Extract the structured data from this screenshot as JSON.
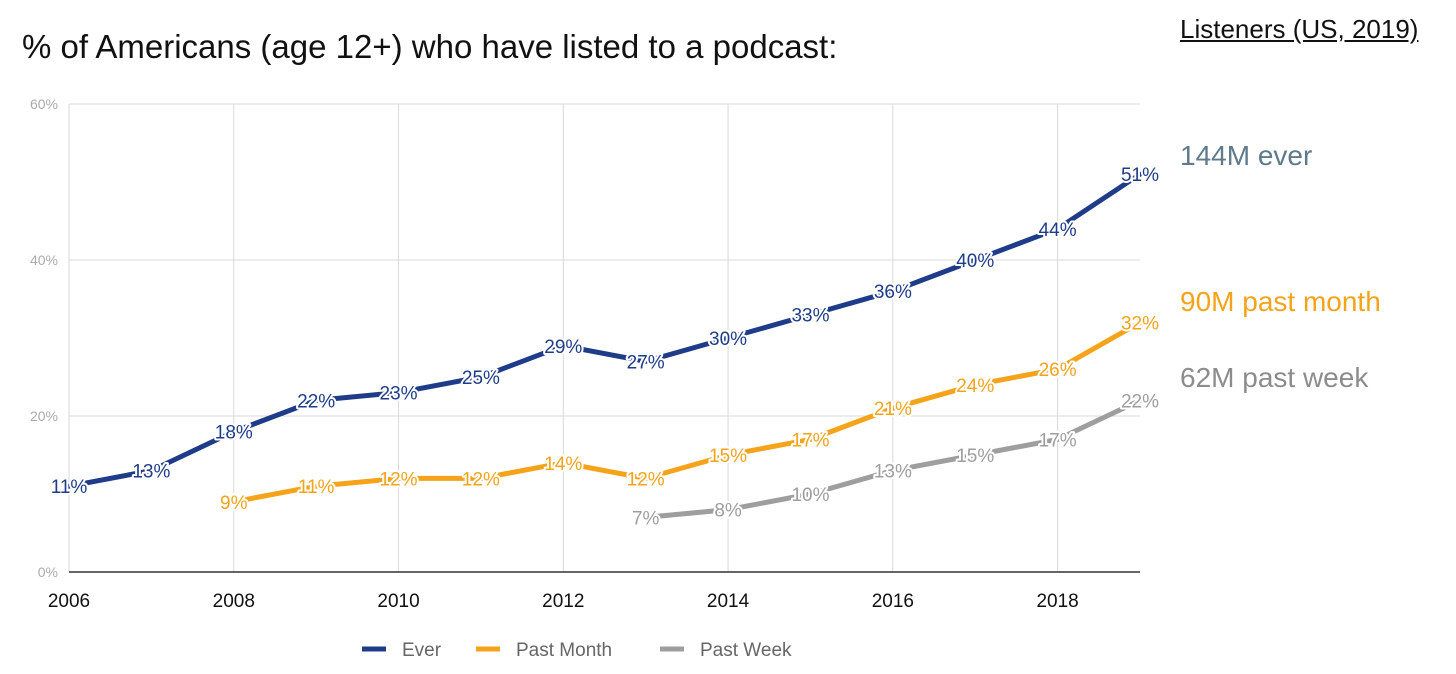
{
  "title": "% of Americans (age 12+) who have listed to a podcast:",
  "side_panel": {
    "heading": "Listeners (US, 2019)",
    "stats": [
      {
        "text": "144M ever",
        "color": "#5f7a8c"
      },
      {
        "text": "90M past month",
        "color": "#f5a31a"
      },
      {
        "text": "62M past week",
        "color": "#8c8c8c"
      }
    ]
  },
  "chart_data": {
    "type": "line",
    "x_ticks": [
      2006,
      2008,
      2010,
      2012,
      2014,
      2016,
      2018
    ],
    "y_ticks": [
      "0%",
      "20%",
      "40%",
      "60%"
    ],
    "ylim": [
      0,
      60
    ],
    "xlim": [
      2006,
      2019
    ],
    "grid": true,
    "legend_position": "bottom",
    "series": [
      {
        "name": "Ever",
        "color": "#1f3c88",
        "label_color": "#1f3c88",
        "x": [
          2006,
          2007,
          2008,
          2009,
          2010,
          2011,
          2012,
          2013,
          2014,
          2015,
          2016,
          2017,
          2018,
          2019
        ],
        "y": [
          11,
          13,
          18,
          22,
          23,
          25,
          29,
          27,
          30,
          33,
          36,
          40,
          44,
          51
        ],
        "labels": [
          "11%",
          "13%",
          "18%",
          "22%",
          "23%",
          "25%",
          "29%",
          "27%",
          "30%",
          "33%",
          "36%",
          "40%",
          "44%",
          "51%"
        ]
      },
      {
        "name": "Past Month",
        "color": "#f5a31a",
        "label_color": "#f5a31a",
        "x": [
          2008,
          2009,
          2010,
          2011,
          2012,
          2013,
          2014,
          2015,
          2016,
          2017,
          2018,
          2019
        ],
        "y": [
          9,
          11,
          12,
          12,
          14,
          12,
          15,
          17,
          21,
          24,
          26,
          32
        ],
        "labels": [
          "9%",
          "11%",
          "12%",
          "12%",
          "14%",
          "12%",
          "15%",
          "17%",
          "21%",
          "24%",
          "26%",
          "32%"
        ]
      },
      {
        "name": "Past Week",
        "color": "#9e9e9e",
        "label_color": "#9e9e9e",
        "x": [
          2013,
          2014,
          2015,
          2016,
          2017,
          2018,
          2019
        ],
        "y": [
          7,
          8,
          10,
          13,
          15,
          17,
          22
        ],
        "labels": [
          "7%",
          "8%",
          "10%",
          "13%",
          "15%",
          "17%",
          "22%"
        ]
      }
    ]
  }
}
